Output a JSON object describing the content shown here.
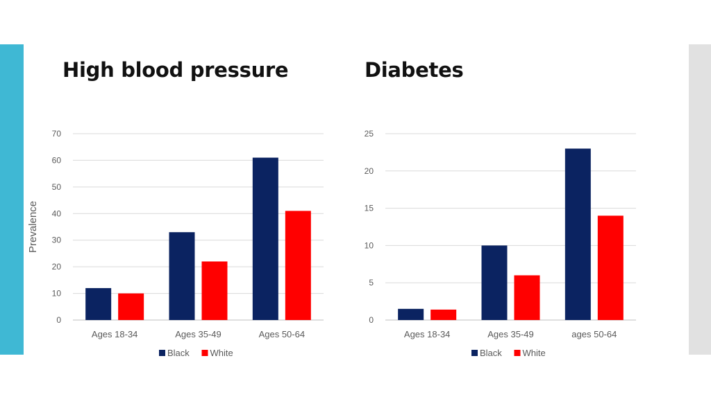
{
  "colors": {
    "accent": "#3fb8d4",
    "panel": "#e1e1e1",
    "black_series": "#0b2361",
    "white_series": "#ff0000"
  },
  "chart_data": [
    {
      "type": "bar",
      "title": "High blood pressure",
      "ylabel": "Prevalence",
      "xlabel": "",
      "ylim": [
        0,
        70
      ],
      "yticks": [
        0,
        10,
        20,
        30,
        40,
        50,
        60,
        70
      ],
      "grid": true,
      "legend_position": "bottom",
      "categories": [
        "Ages 18-34",
        "Ages 35-49",
        "Ages 50-64"
      ],
      "series": [
        {
          "name": "Black",
          "color": "#0b2361",
          "values": [
            12,
            33,
            61
          ]
        },
        {
          "name": "White",
          "color": "#ff0000",
          "values": [
            10,
            22,
            41
          ]
        }
      ]
    },
    {
      "type": "bar",
      "title": "Diabetes",
      "ylabel": "",
      "xlabel": "",
      "ylim": [
        0,
        25
      ],
      "yticks": [
        0,
        5,
        10,
        15,
        20,
        25
      ],
      "grid": true,
      "legend_position": "bottom",
      "categories": [
        "Ages 18-34",
        "Ages 35-49",
        "ages 50-64"
      ],
      "series": [
        {
          "name": "Black",
          "color": "#0b2361",
          "values": [
            1.5,
            10,
            23
          ]
        },
        {
          "name": "White",
          "color": "#ff0000",
          "values": [
            1.4,
            6,
            14
          ]
        }
      ]
    }
  ]
}
